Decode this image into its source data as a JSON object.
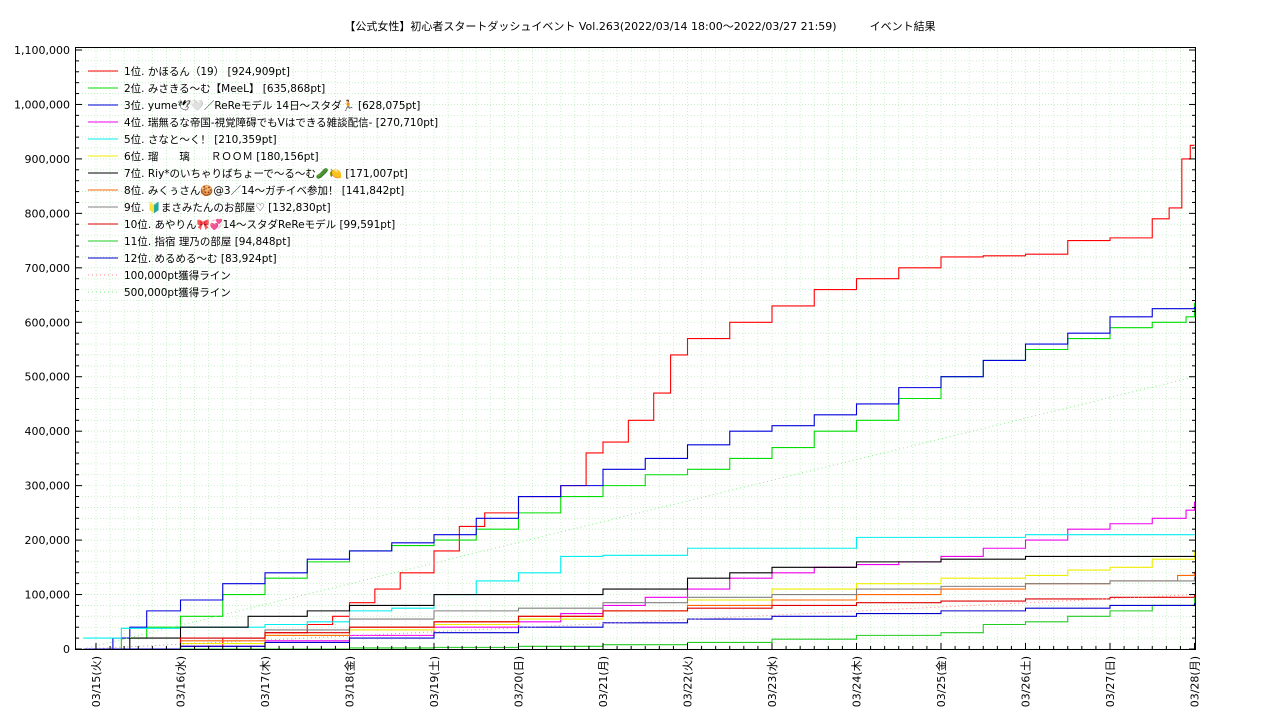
{
  "chart_data": {
    "type": "line",
    "title": "【公式女性】初心者スタートダッシュイベント Vol.263(2022/03/14 18:00～2022/03/27 21:59)　　　イベント結果",
    "xlabel": "",
    "ylabel": "",
    "x_ticks": [
      "03/15(火)",
      "03/16(水)",
      "03/17(木)",
      "03/18(金)",
      "03/19(土)",
      "03/20(日)",
      "03/21(月)",
      "03/22(火)",
      "03/23(水)",
      "03/24(木)",
      "03/25(金)",
      "03/26(土)",
      "03/27(日)",
      "03/28(月)"
    ],
    "xlim": [
      0,
      13
    ],
    "ylim": [
      0,
      1100000
    ],
    "y_ticks": [
      0,
      100000,
      200000,
      300000,
      400000,
      500000,
      600000,
      700000,
      800000,
      900000,
      1000000,
      1100000
    ],
    "y_tick_labels": [
      "0",
      "100,000",
      "200,000",
      "300,000",
      "400,000",
      "500,000",
      "600,000",
      "700,000",
      "800,000",
      "900,000",
      "1,000,000",
      "1,100,000"
    ],
    "grid": true,
    "legend_position": "top-left",
    "x_units": "days after 03/15 00:00",
    "series": [
      {
        "name": "1位. かほるん（19） [924,909pt]",
        "color": "#ff0000",
        "x": [
          -0.15,
          0.3,
          1.0,
          1.5,
          2.0,
          2.5,
          2.8,
          3.0,
          3.3,
          3.6,
          4.0,
          4.3,
          4.6,
          5.0,
          5.5,
          5.8,
          6.0,
          6.3,
          6.6,
          6.8,
          7.0,
          7.5,
          8.0,
          8.5,
          9.0,
          9.5,
          10.0,
          10.5,
          11.0,
          11.5,
          12.0,
          12.5,
          12.7,
          12.85,
          12.95,
          13.0
        ],
        "y": [
          0,
          0,
          5000,
          20000,
          30000,
          45000,
          60000,
          85000,
          110000,
          140000,
          180000,
          225000,
          250000,
          280000,
          300000,
          360000,
          380000,
          420000,
          470000,
          540000,
          570000,
          600000,
          630000,
          660000,
          680000,
          700000,
          720000,
          722000,
          725000,
          750000,
          755000,
          790000,
          810000,
          900000,
          924909,
          924909
        ]
      },
      {
        "name": "2位. みさきる〜む【MeeL】 [635,868pt]",
        "color": "#00dd00",
        "x": [
          -0.15,
          0.3,
          0.6,
          1.0,
          1.5,
          2.0,
          2.5,
          3.0,
          3.5,
          4.0,
          4.5,
          5.0,
          5.5,
          6.0,
          6.5,
          7.0,
          7.5,
          8.0,
          8.5,
          9.0,
          9.5,
          10.0,
          10.5,
          11.0,
          11.5,
          12.0,
          12.5,
          12.9,
          13.0
        ],
        "y": [
          0,
          20000,
          40000,
          60000,
          100000,
          130000,
          160000,
          180000,
          190000,
          200000,
          220000,
          250000,
          280000,
          300000,
          320000,
          330000,
          350000,
          370000,
          400000,
          420000,
          460000,
          500000,
          530000,
          550000,
          570000,
          590000,
          600000,
          610000,
          635868
        ]
      },
      {
        "name": "3位. yume🕊🤍／ReReモデル 14日〜スタダ🏃 [628,075pt]",
        "color": "#0000dd",
        "x": [
          -0.15,
          0.2,
          0.4,
          0.6,
          1.0,
          1.5,
          2.0,
          2.5,
          3.0,
          3.5,
          4.0,
          4.5,
          5.0,
          5.5,
          6.0,
          6.5,
          7.0,
          7.5,
          8.0,
          8.5,
          9.0,
          9.5,
          10.0,
          10.5,
          11.0,
          11.5,
          12.0,
          12.5,
          13.0
        ],
        "y": [
          0,
          20000,
          40000,
          70000,
          90000,
          120000,
          140000,
          165000,
          180000,
          195000,
          210000,
          240000,
          280000,
          300000,
          330000,
          350000,
          375000,
          400000,
          410000,
          430000,
          450000,
          480000,
          500000,
          530000,
          560000,
          580000,
          610000,
          625000,
          628075
        ]
      },
      {
        "name": "4位. 瑞無るな帝国-視覚障碍でもVはできる雑談配信- [270,710pt]",
        "color": "#ee00ee",
        "x": [
          -0.15,
          1.0,
          2.0,
          3.0,
          4.0,
          5.0,
          5.5,
          6.0,
          6.5,
          7.0,
          7.5,
          8.0,
          8.5,
          9.0,
          9.5,
          10.0,
          10.5,
          11.0,
          11.5,
          12.0,
          12.5,
          12.9,
          13.0
        ],
        "y": [
          0,
          5000,
          15000,
          25000,
          40000,
          50000,
          65000,
          80000,
          95000,
          110000,
          130000,
          140000,
          150000,
          155000,
          160000,
          170000,
          185000,
          200000,
          220000,
          230000,
          240000,
          255000,
          270710
        ]
      },
      {
        "name": "5位. さなと〜く！ [210,359pt]",
        "color": "#00eeee",
        "x": [
          -0.15,
          0.3,
          1.0,
          2.0,
          2.5,
          3.0,
          3.5,
          4.0,
          4.5,
          5.0,
          5.5,
          6.0,
          7.0,
          8.0,
          9.0,
          10.0,
          11.0,
          12.0,
          13.0
        ],
        "y": [
          20000,
          38000,
          40000,
          45000,
          50000,
          70000,
          75000,
          100000,
          125000,
          140000,
          170000,
          172000,
          185000,
          185000,
          205000,
          205000,
          210000,
          210000,
          210359
        ]
      },
      {
        "name": "6位. 瑠　　璃　　ＲＯＯＭ [180,156pt]",
        "color": "#eeee00",
        "x": [
          -0.15,
          1.0,
          2.0,
          3.0,
          4.0,
          5.0,
          6.0,
          7.0,
          8.0,
          9.0,
          10.0,
          11.0,
          11.5,
          12.0,
          12.5,
          13.0
        ],
        "y": [
          0,
          10000,
          25000,
          35000,
          45000,
          55000,
          70000,
          90000,
          110000,
          120000,
          130000,
          135000,
          145000,
          150000,
          165000,
          180156
        ]
      },
      {
        "name": "7位. Riy*のいちゃりばちょーで〜る〜む🥒🍋 [171,007pt]",
        "color": "#000000",
        "x": [
          -0.15,
          0.4,
          1.0,
          1.8,
          2.5,
          3.0,
          4.0,
          5.0,
          6.0,
          7.0,
          7.5,
          8.0,
          9.0,
          10.0,
          11.0,
          12.0,
          13.0
        ],
        "y": [
          0,
          20000,
          40000,
          60000,
          70000,
          80000,
          100000,
          100000,
          110000,
          130000,
          140000,
          150000,
          160000,
          165000,
          170000,
          170000,
          171007
        ]
      },
      {
        "name": "8位. みくぅさん🍪@3／14〜ガチイベ参加！ [141,842pt]",
        "color": "#ff6600",
        "x": [
          -0.15,
          1.0,
          2.0,
          3.0,
          4.0,
          5.0,
          6.0,
          7.0,
          8.0,
          9.0,
          10.0,
          11.0,
          12.0,
          12.8,
          13.0
        ],
        "y": [
          0,
          15000,
          25000,
          40000,
          50000,
          60000,
          70000,
          80000,
          90000,
          100000,
          110000,
          120000,
          125000,
          135000,
          141842
        ]
      },
      {
        "name": "9位. 🔰まさみたんのお部屋♡ [132,830pt]",
        "color": "#808080",
        "x": [
          -0.15,
          1.0,
          2.0,
          3.0,
          4.0,
          5.0,
          6.0,
          7.0,
          8.0,
          9.0,
          10.0,
          11.0,
          12.0,
          13.0
        ],
        "y": [
          0,
          20000,
          35000,
          55000,
          70000,
          75000,
          85000,
          95000,
          100000,
          110000,
          115000,
          120000,
          125000,
          132830
        ]
      },
      {
        "name": "10位. あやりん🎀💞14〜スタダReReモデル [99,591pt]",
        "color": "#dd0000",
        "x": [
          -0.15,
          1.0,
          2.0,
          3.0,
          4.0,
          5.0,
          6.0,
          7.0,
          8.0,
          9.0,
          10.0,
          11.0,
          12.0,
          13.0
        ],
        "y": [
          0,
          20000,
          30000,
          40000,
          50000,
          60000,
          70000,
          75000,
          80000,
          85000,
          88000,
          92000,
          95000,
          99591
        ]
      },
      {
        "name": "11位. 指宿 理乃の部屋 [94,848pt]",
        "color": "#22cc22",
        "x": [
          -0.15,
          2.0,
          3.0,
          4.0,
          5.0,
          6.0,
          7.0,
          8.0,
          9.0,
          10.0,
          10.5,
          11.0,
          11.5,
          12.0,
          12.5,
          13.0
        ],
        "y": [
          0,
          0,
          2000,
          3000,
          5000,
          8000,
          12000,
          18000,
          25000,
          30000,
          45000,
          50000,
          60000,
          70000,
          80000,
          94848
        ]
      },
      {
        "name": "12位. めるめる〜む [83,924pt]",
        "color": "#0000cc",
        "x": [
          -0.15,
          1.0,
          2.0,
          3.0,
          4.0,
          5.0,
          6.0,
          7.0,
          8.0,
          9.0,
          10.0,
          11.0,
          12.0,
          13.0
        ],
        "y": [
          0,
          5000,
          12000,
          20000,
          30000,
          40000,
          48000,
          55000,
          60000,
          65000,
          70000,
          75000,
          80000,
          83924
        ]
      },
      {
        "name": "100,000pt獲得ライン",
        "color": "#ff8888",
        "dotted": true,
        "x": [
          -0.15,
          13.0
        ],
        "y": [
          0,
          100000
        ]
      },
      {
        "name": "500,000pt獲得ライン",
        "color": "#88ee88",
        "dotted": true,
        "x": [
          -0.15,
          13.0
        ],
        "y": [
          0,
          500000
        ]
      }
    ]
  }
}
